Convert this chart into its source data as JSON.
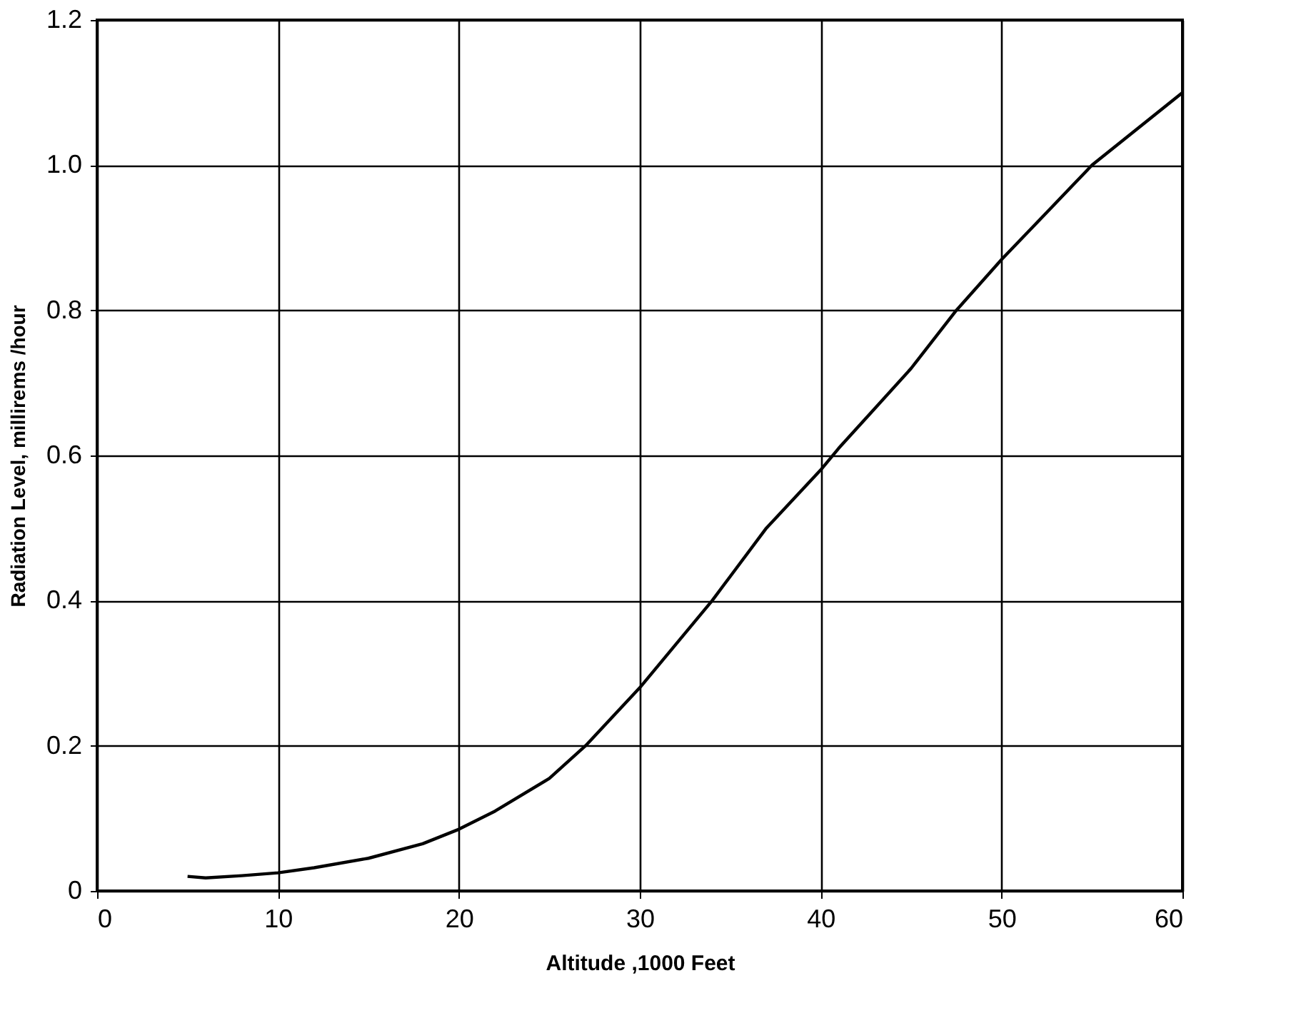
{
  "chart_data": {
    "type": "line",
    "xlabel": "Altitude ,1000 Feet",
    "ylabel": "Radiation  Level, millirems /hour",
    "x": [
      5,
      6,
      8,
      10,
      12,
      15,
      18,
      20,
      22,
      25,
      27,
      30,
      32,
      34,
      37,
      40,
      41,
      43,
      45,
      47.5,
      50,
      52.5,
      55,
      57.5,
      60
    ],
    "series": [
      {
        "color": "#000000",
        "values": [
          0.02,
          0.018,
          0.021,
          0.025,
          0.032,
          0.045,
          0.065,
          0.085,
          0.11,
          0.155,
          0.2,
          0.28,
          0.34,
          0.4,
          0.5,
          0.58,
          0.61,
          0.665,
          0.72,
          0.8,
          0.87,
          0.935,
          1.0,
          1.05,
          1.1
        ]
      }
    ],
    "xlim": [
      0,
      60
    ],
    "xticks": [
      0,
      10,
      20,
      30,
      40,
      50,
      60
    ],
    "ylim": [
      0,
      1.2
    ],
    "yticks": [
      0,
      0.2,
      0.4,
      0.6,
      0.8,
      {
        "value": 1,
        "label": "1.0"
      },
      1.2
    ],
    "grid": true,
    "marker": "none",
    "line_style": "solid",
    "legend": false
  }
}
